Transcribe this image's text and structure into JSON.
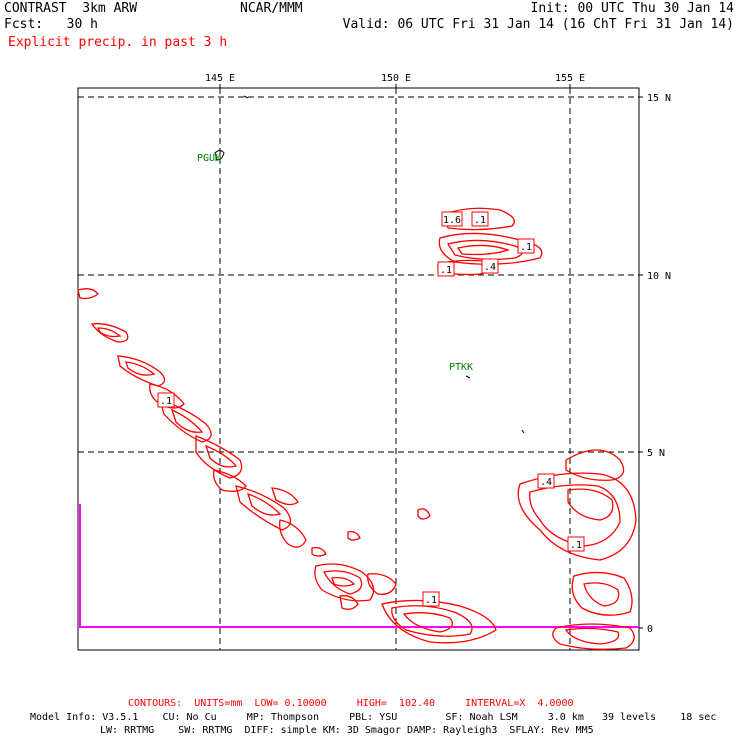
{
  "header": {
    "left_line1": "CONTRAST  3km ARW",
    "left_line2": "Fcst:   30 h",
    "center_line1": "NCAR/MMM",
    "right_line1": "Init: 00 UTC Thu 30 Jan 14",
    "right_line2": "Valid: 06 UTC Fri 31 Jan 14 (16 ChT Fri 31 Jan 14)",
    "field_title": "Explicit precip. in past 3 h"
  },
  "map": {
    "lon_labels": [
      "145 E",
      "150 E",
      "155 E"
    ],
    "lat_labels": [
      "15 N",
      "10 N",
      "5 N",
      "0"
    ],
    "stations": [
      "PGUM",
      "PTKK"
    ],
    "contour_labels": [
      "1.6",
      ".1",
      ".1",
      ".4",
      ".1",
      ".1",
      ".4",
      ".1",
      ".1"
    ],
    "colors": {
      "contour": "#ff0000",
      "grid": "#000000",
      "station": "#008000",
      "boundary": "#ff00ff"
    }
  },
  "footer": {
    "contours": "CONTOURS:  UNITS=mm  LOW= 0.10000     HIGH=  102.40     INTERVAL=X  4.0000",
    "model_info_1": "Model Info: V3.5.1    CU: No Cu     MP: Thompson     PBL: YSU        SF: Noah LSM     3.0 km   39 levels    18 sec",
    "model_info_2": "LW: RRTMG    SW: RRTMG  DIFF: simple KM: 3D Smagor DAMP: Rayleigh3  SFLAY: Rev MM5"
  }
}
